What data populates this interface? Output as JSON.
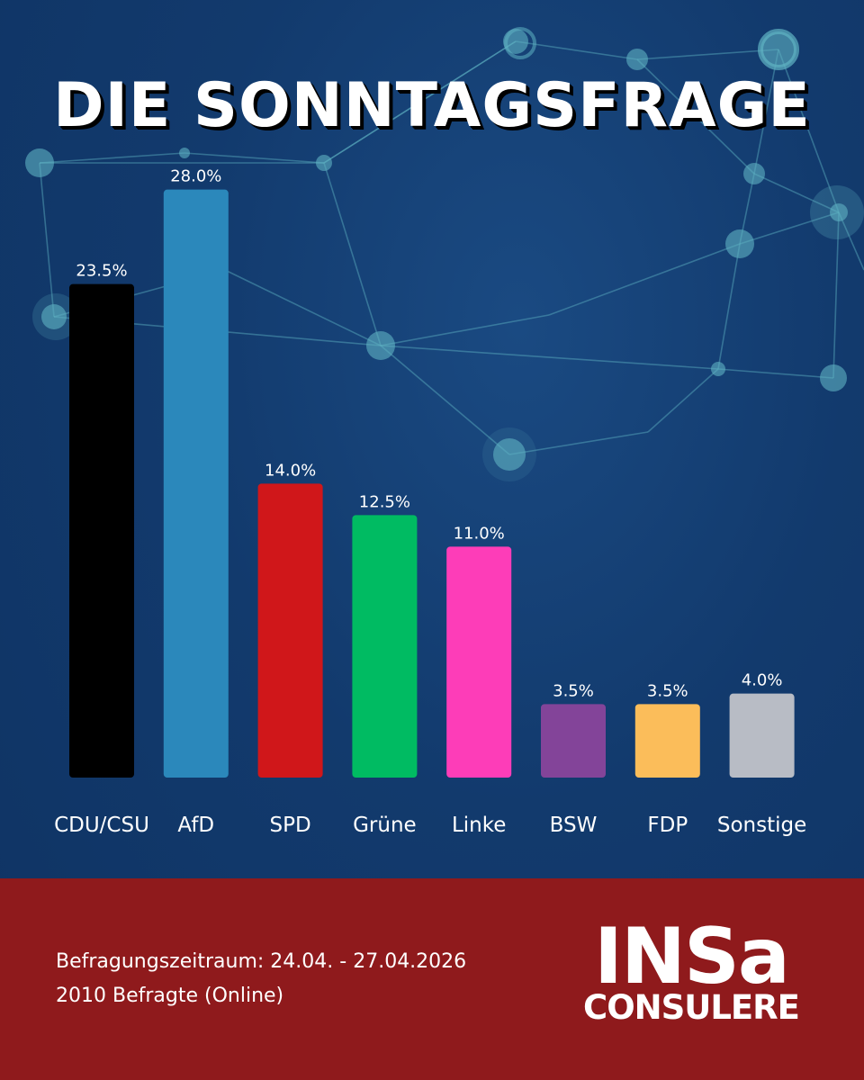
{
  "title": "DIE SONNTAGSFRAGE",
  "chart_data": {
    "type": "bar",
    "categories": [
      "CDU/CSU",
      "AfD",
      "SPD",
      "Grüne",
      "Linke",
      "BSW",
      "FDP",
      "Sonstige"
    ],
    "values": [
      23.5,
      28.0,
      14.0,
      12.5,
      11.0,
      3.5,
      3.5,
      4.0
    ],
    "value_labels": [
      "23.5%",
      "28.0%",
      "14.0%",
      "12.5%",
      "11.0%",
      "3.5%",
      "3.5%",
      "4.0%"
    ],
    "colors": [
      "#000000",
      "#2b88bb",
      "#d0171a",
      "#00bb62",
      "#fd3db8",
      "#834499",
      "#fbbd5a",
      "#b8bcc5"
    ],
    "ylim": [
      0,
      30
    ],
    "unit": "%",
    "grid": false,
    "legend": "none"
  },
  "footer": {
    "period": "Befragungszeitraum: 24.04. - 27.04.2026",
    "respondents": "2010 Befragte (Online)",
    "logo_main": "INSa",
    "logo_sub": "CONSULERE"
  },
  "colors": {
    "background": "#123a6d",
    "footer": "#8f1a1c",
    "network": "#5fb3c3"
  }
}
